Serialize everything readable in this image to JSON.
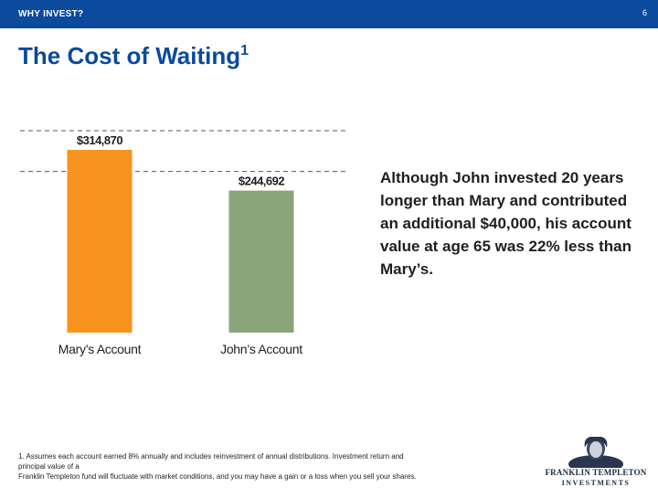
{
  "header": {
    "section_label": "WHY INVEST?",
    "page_number": "6"
  },
  "title": {
    "text": "The Cost of Waiting",
    "footnote_marker": "1"
  },
  "chart_data": {
    "type": "bar",
    "categories": [
      "Mary’s Account",
      "John’s Account"
    ],
    "values": [
      314870,
      244692
    ],
    "value_labels": [
      "$314,870",
      "$244,692"
    ],
    "colors": [
      "#f7941d",
      "#8aa57a"
    ],
    "reference_lines": [
      314870,
      244692
    ],
    "reference_line_style": "dashed",
    "title": "",
    "xlabel": "",
    "ylabel": ""
  },
  "description": "Although John invested 20 years longer than Mary and contributed an additional $40,000, his account value at age 65 was 22% less than Mary’s.",
  "footnote": {
    "line1": "1. Assumes each account earned 8% annually and includes reinvestment of annual distributions. Investment return and",
    "line2": "principal value of a",
    "line3": "Franklin Templeton fund will fluctuate with market conditions, and you may have a gain or a loss when you sell your shares."
  },
  "logo": {
    "line1": "FRANKLIN TEMPLETON",
    "line2": "INVESTMENTS"
  }
}
